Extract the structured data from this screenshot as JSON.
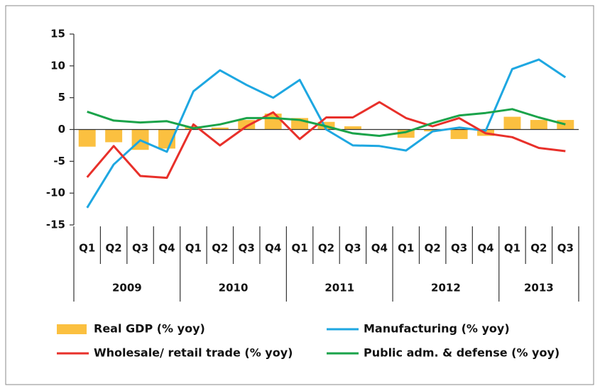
{
  "chart_data": {
    "type": "combo",
    "categories": [
      "Q1",
      "Q2",
      "Q3",
      "Q4",
      "Q1",
      "Q2",
      "Q3",
      "Q4",
      "Q1",
      "Q2",
      "Q3",
      "Q4",
      "Q1",
      "Q2",
      "Q3",
      "Q4",
      "Q1",
      "Q2",
      "Q3"
    ],
    "groups": [
      "2009",
      "2010",
      "2011",
      "2012",
      "2013"
    ],
    "ylim": [
      -15,
      15
    ],
    "yticks": [
      -15,
      -10,
      -5,
      0,
      5,
      10,
      15
    ],
    "series": [
      {
        "name": "Real GDP (% yoy)",
        "type": "bar",
        "color": "#fbc040",
        "values": [
          -2.7,
          -2,
          -3.2,
          -3,
          0.5,
          0.3,
          1.5,
          2.5,
          1.8,
          1.2,
          0.5,
          0,
          -1.3,
          -0.3,
          -1.5,
          -1,
          2,
          1.5,
          1.5
        ]
      },
      {
        "name": "Manufacturing (% yoy)",
        "type": "line",
        "color": "#1ea7e1",
        "values": [
          -12.3,
          -5.5,
          -1.7,
          -3.5,
          6,
          9.3,
          7,
          5,
          7.8,
          0,
          -2.5,
          -2.6,
          -3.3,
          -0.3,
          0.3,
          -0.2,
          9.5,
          11,
          8.2
        ]
      },
      {
        "name": "Wholesale/ retail trade (% yoy)",
        "type": "line",
        "color": "#e8302a",
        "values": [
          -7.5,
          -2.6,
          -7.3,
          -7.6,
          0.8,
          -2.5,
          0.5,
          2.7,
          -1.5,
          1.9,
          1.9,
          4.3,
          1.8,
          0.5,
          1.8,
          -0.6,
          -1.2,
          -2.9,
          -3.4
        ]
      },
      {
        "name": "Public adm. & defense (% yoy)",
        "type": "line",
        "color": "#1aa34a",
        "values": [
          2.8,
          1.4,
          1.1,
          1.3,
          0.2,
          0.8,
          1.8,
          1.8,
          1.5,
          0.5,
          -0.6,
          -1,
          -0.4,
          1,
          2.2,
          2.6,
          3.2,
          1.9,
          0.8
        ]
      }
    ]
  }
}
